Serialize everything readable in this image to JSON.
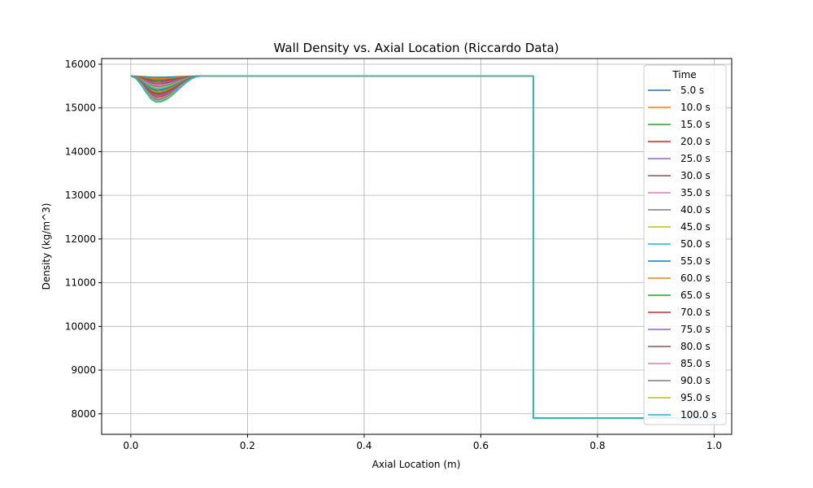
{
  "chart_data": {
    "type": "line",
    "title": "Wall Density vs. Axial Location (Riccardo Data)",
    "xlabel": "Axial Location (m)",
    "ylabel": "Density (kg/m^3)",
    "xlim": [
      -0.05,
      1.03
    ],
    "ylim": [
      7530,
      16130
    ],
    "xticks": [
      0.0,
      0.2,
      0.4,
      0.6,
      0.8,
      1.0
    ],
    "xtick_labels": [
      "0.0",
      "0.2",
      "0.4",
      "0.6",
      "0.8",
      "1.0"
    ],
    "yticks": [
      8000,
      9000,
      10000,
      11000,
      12000,
      13000,
      14000,
      15000,
      16000
    ],
    "ytick_labels": [
      "8000",
      "9000",
      "10000",
      "11000",
      "12000",
      "13000",
      "14000",
      "15000",
      "16000"
    ],
    "grid": true,
    "legend": {
      "title": "Time",
      "position": "right"
    },
    "profile": {
      "base_density": 15730,
      "step_location": 0.69,
      "low_density": 7900,
      "x_end": 1.0,
      "dip_center": 0.045,
      "dip_extent": [
        0.0,
        0.12
      ],
      "dip_depth_per_second": 6.0
    },
    "series": [
      {
        "name": "5.0 s",
        "time": 5,
        "color": "#1f77b4"
      },
      {
        "name": "10.0 s",
        "time": 10,
        "color": "#ff7f0e"
      },
      {
        "name": "15.0 s",
        "time": 15,
        "color": "#2ca02c"
      },
      {
        "name": "20.0 s",
        "time": 20,
        "color": "#d62728"
      },
      {
        "name": "25.0 s",
        "time": 25,
        "color": "#9467bd"
      },
      {
        "name": "30.0 s",
        "time": 30,
        "color": "#8c564b"
      },
      {
        "name": "35.0 s",
        "time": 35,
        "color": "#e377c2"
      },
      {
        "name": "40.0 s",
        "time": 40,
        "color": "#7f7f7f"
      },
      {
        "name": "45.0 s",
        "time": 45,
        "color": "#bcbd22"
      },
      {
        "name": "50.0 s",
        "time": 50,
        "color": "#17becf"
      },
      {
        "name": "55.0 s",
        "time": 55,
        "color": "#1f77b4"
      },
      {
        "name": "60.0 s",
        "time": 60,
        "color": "#ff7f0e"
      },
      {
        "name": "65.0 s",
        "time": 65,
        "color": "#2ca02c"
      },
      {
        "name": "70.0 s",
        "time": 70,
        "color": "#d62728"
      },
      {
        "name": "75.0 s",
        "time": 75,
        "color": "#9467bd"
      },
      {
        "name": "80.0 s",
        "time": 80,
        "color": "#8c564b"
      },
      {
        "name": "85.0 s",
        "time": 85,
        "color": "#e377c2"
      },
      {
        "name": "90.0 s",
        "time": 90,
        "color": "#7f7f7f"
      },
      {
        "name": "95.0 s",
        "time": 95,
        "color": "#bcbd22"
      },
      {
        "name": "100.0 s",
        "time": 100,
        "color": "#17becf"
      }
    ]
  }
}
